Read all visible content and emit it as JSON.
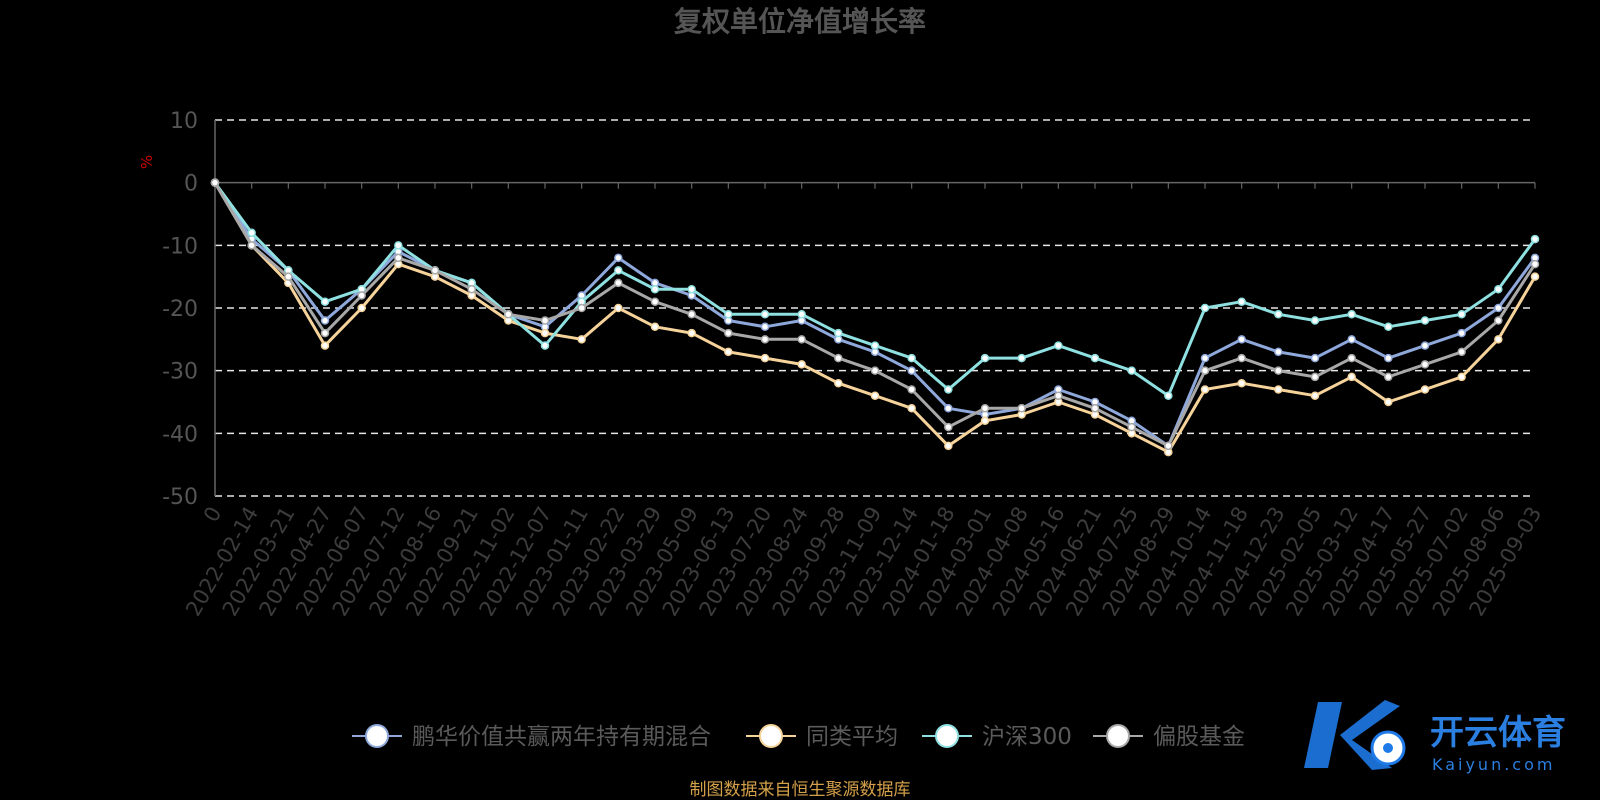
{
  "chart_data": {
    "type": "line",
    "title": "复权单位净值增长率",
    "ylabel": "%",
    "ylim": [
      -50,
      10
    ],
    "yticks": [
      10,
      0,
      -10,
      -20,
      -30,
      -40,
      -50
    ],
    "grid": true,
    "legend_position": "bottom",
    "x_tick_labels": [
      "0",
      "2022-02-14",
      "2022-03-21",
      "2022-04-27",
      "2022-06-07",
      "2022-07-12",
      "2022-08-16",
      "2022-09-21",
      "2022-11-02",
      "2022-12-07",
      "2023-01-11",
      "2023-02-22",
      "2023-03-29",
      "2023-05-09",
      "2023-06-13",
      "2023-07-20",
      "2023-08-24",
      "2023-09-28",
      "2023-11-09",
      "2023-12-14",
      "2024-01-18",
      "2024-03-01",
      "2024-04-08",
      "2024-05-16",
      "2024-06-21",
      "2024-07-25",
      "2024-08-29",
      "2024-10-14",
      "2024-11-18",
      "2024-12-23",
      "2025-02-05",
      "2025-03-12",
      "2025-04-17",
      "2025-05-27",
      "2025-07-02",
      "2025-08-06",
      "2025-09-03"
    ],
    "series": [
      {
        "name": "鹏华价值共赢两年持有期混合",
        "color": "#8fa8db",
        "values": [
          0,
          -9,
          -14,
          -22,
          -17,
          -11,
          -14,
          -16,
          -21,
          -23,
          -18,
          -12,
          -16,
          -18,
          -22,
          -23,
          -22,
          -25,
          -27,
          -30,
          -36,
          -37,
          -36,
          -33,
          -35,
          -38,
          -42,
          -28,
          -25,
          -27,
          -28,
          -25,
          -28,
          -26,
          -24,
          -20,
          -12
        ]
      },
      {
        "name": "同类平均",
        "color": "#f5d39a",
        "values": [
          0,
          -10,
          -16,
          -26,
          -20,
          -13,
          -15,
          -18,
          -22,
          -24,
          -25,
          -20,
          -23,
          -24,
          -27,
          -28,
          -29,
          -32,
          -34,
          -36,
          -42,
          -38,
          -37,
          -35,
          -37,
          -40,
          -43,
          -33,
          -32,
          -33,
          -34,
          -31,
          -35,
          -33,
          -31,
          -25,
          -15
        ]
      },
      {
        "name": "沪深300",
        "color": "#8fe0e0",
        "values": [
          0,
          -8,
          -14,
          -19,
          -17,
          -10,
          -14,
          -16,
          -21,
          -26,
          -19,
          -14,
          -17,
          -17,
          -21,
          -21,
          -21,
          -24,
          -26,
          -28,
          -33,
          -28,
          -28,
          -26,
          -28,
          -30,
          -34,
          -20,
          -19,
          -21,
          -22,
          -21,
          -23,
          -22,
          -21,
          -17,
          -9
        ]
      },
      {
        "name": "偏股基金",
        "color": "#a8a8a8",
        "values": [
          0,
          -10,
          -15,
          -24,
          -18,
          -12,
          -14,
          -17,
          -21,
          -22,
          -20,
          -16,
          -19,
          -21,
          -24,
          -25,
          -25,
          -28,
          -30,
          -33,
          -39,
          -36,
          -36,
          -34,
          -36,
          -39,
          -42,
          -30,
          -28,
          -30,
          -31,
          -28,
          -31,
          -29,
          -27,
          -22,
          -13
        ]
      }
    ]
  },
  "source_note": "制图数据来自恒生聚源数据库",
  "watermark": {
    "brand": "开云体育",
    "url": "Kaiyun.com"
  }
}
